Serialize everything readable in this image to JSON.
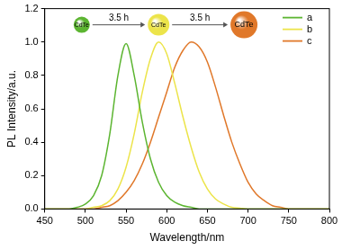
{
  "chart_data": {
    "type": "line",
    "x_label": "Wavelength/nm",
    "y_label": "PL Intensity/a.u.",
    "x": [
      450,
      460,
      470,
      480,
      490,
      500,
      510,
      520,
      530,
      540,
      550,
      560,
      570,
      580,
      590,
      600,
      610,
      620,
      630,
      640,
      650,
      660,
      670,
      680,
      690,
      700,
      710,
      720,
      730,
      740,
      750,
      760,
      770,
      780,
      790,
      800
    ],
    "series": [
      {
        "name": "a",
        "color": "#5cb531",
        "values": [
          0,
          0,
          0,
          0,
          0.01,
          0.03,
          0.08,
          0.2,
          0.45,
          0.8,
          0.99,
          0.8,
          0.52,
          0.3,
          0.16,
          0.08,
          0.04,
          0.02,
          0.01,
          0,
          0,
          0,
          0,
          0,
          0,
          0,
          0,
          0,
          0,
          0,
          0,
          0,
          0,
          0,
          0,
          0
        ]
      },
      {
        "name": "b",
        "color": "#ece44a",
        "values": [
          0,
          0,
          0,
          0,
          0,
          0,
          0.01,
          0.02,
          0.05,
          0.12,
          0.25,
          0.45,
          0.7,
          0.9,
          1.0,
          0.93,
          0.75,
          0.55,
          0.37,
          0.22,
          0.12,
          0.06,
          0.03,
          0.01,
          0.005,
          0,
          0,
          0,
          0,
          0,
          0,
          0,
          0,
          0,
          0,
          0
        ]
      },
      {
        "name": "c",
        "color": "#e0782a",
        "values": [
          0,
          0,
          0,
          0,
          0,
          0,
          0,
          0.01,
          0.02,
          0.05,
          0.1,
          0.17,
          0.27,
          0.4,
          0.55,
          0.7,
          0.85,
          0.95,
          1.0,
          0.97,
          0.88,
          0.73,
          0.56,
          0.4,
          0.27,
          0.16,
          0.09,
          0.05,
          0.02,
          0.01,
          0,
          0,
          0,
          0,
          0,
          0
        ]
      }
    ],
    "xlim": [
      450,
      800
    ],
    "xticks": [
      450,
      500,
      550,
      600,
      650,
      700,
      750,
      800
    ],
    "ylim": [
      0,
      1.2
    ],
    "yticks": [
      {
        "value": 0,
        "label": "0.0"
      },
      0.2,
      0.4,
      0.6,
      0.8,
      {
        "value": 1,
        "label": "1.0"
      },
      1.2
    ],
    "grid": false,
    "legend": "upper right",
    "annotations": {
      "dots": [
        "CdTe",
        "CdTe",
        "CdTe"
      ],
      "arrows": [
        "3.5 h",
        "3.5 h"
      ]
    }
  }
}
